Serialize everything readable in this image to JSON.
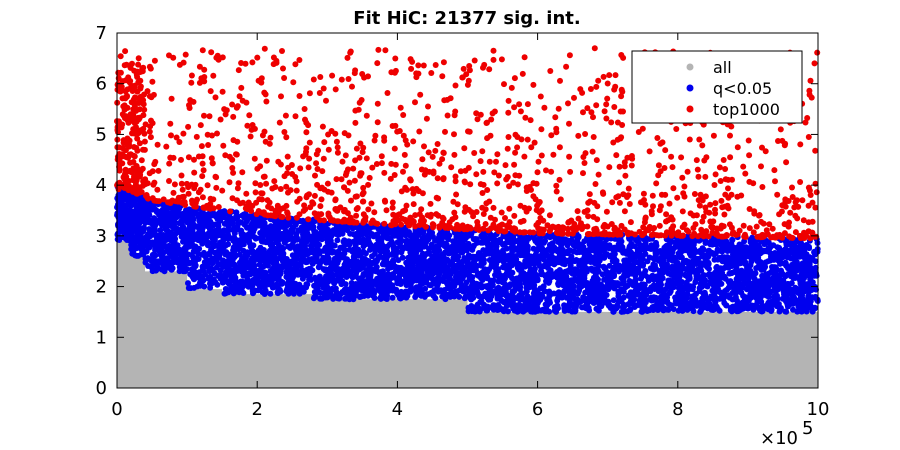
{
  "chart_data": {
    "type": "scatter",
    "title": "Fit HiC: 21377 sig. int.",
    "xlabel": "",
    "ylabel": "",
    "xlim": [
      0,
      1000000
    ],
    "ylim": [
      0,
      7
    ],
    "x_ticks": [
      0,
      200000,
      400000,
      600000,
      800000,
      1000000
    ],
    "x_tick_labels": [
      "0",
      "2",
      "4",
      "6",
      "8",
      "10"
    ],
    "x_exponent_label": "×10",
    "x_exponent_power": "5",
    "y_ticks": [
      0,
      1,
      2,
      3,
      4,
      5,
      6,
      7
    ],
    "y_tick_labels": [
      "0",
      "1",
      "2",
      "3",
      "4",
      "5",
      "6",
      "7"
    ],
    "grid": false,
    "legend_position": "top-right",
    "series": [
      {
        "name": "all",
        "color": "#b4b4b4",
        "description_points": "dense band from 0 up to a falling threshold",
        "threshold_steps": [
          {
            "x": 0,
            "y": 2.9
          },
          {
            "x": 20000,
            "y": 2.6
          },
          {
            "x": 40000,
            "y": 2.3
          },
          {
            "x": 100000,
            "y": 1.95
          },
          {
            "x": 150000,
            "y": 1.85
          },
          {
            "x": 280000,
            "y": 1.75
          },
          {
            "x": 500000,
            "y": 1.5
          },
          {
            "x": 1000000,
            "y": 1.45
          }
        ]
      },
      {
        "name": "q<0.05",
        "color": "#0000ee",
        "band_low": [
          {
            "x": 0,
            "y": 2.9
          },
          {
            "x": 20000,
            "y": 2.6
          },
          {
            "x": 40000,
            "y": 2.3
          },
          {
            "x": 100000,
            "y": 1.95
          },
          {
            "x": 150000,
            "y": 1.85
          },
          {
            "x": 280000,
            "y": 1.75
          },
          {
            "x": 500000,
            "y": 1.5
          },
          {
            "x": 1000000,
            "y": 1.45
          }
        ],
        "band_high": [
          {
            "x": 0,
            "y": 4.0
          },
          {
            "x": 50000,
            "y": 3.7
          },
          {
            "x": 150000,
            "y": 3.5
          },
          {
            "x": 250000,
            "y": 3.35
          },
          {
            "x": 400000,
            "y": 3.2
          },
          {
            "x": 600000,
            "y": 3.05
          },
          {
            "x": 800000,
            "y": 3.0
          },
          {
            "x": 1000000,
            "y": 2.95
          }
        ]
      },
      {
        "name": "top1000",
        "color": "#ee0000",
        "band_low": [
          {
            "x": 0,
            "y": 4.0
          },
          {
            "x": 50000,
            "y": 3.7
          },
          {
            "x": 150000,
            "y": 3.5
          },
          {
            "x": 250000,
            "y": 3.35
          },
          {
            "x": 400000,
            "y": 3.2
          },
          {
            "x": 600000,
            "y": 3.05
          },
          {
            "x": 800000,
            "y": 3.0
          },
          {
            "x": 1000000,
            "y": 2.95
          }
        ],
        "max_y": 6.7
      }
    ]
  }
}
